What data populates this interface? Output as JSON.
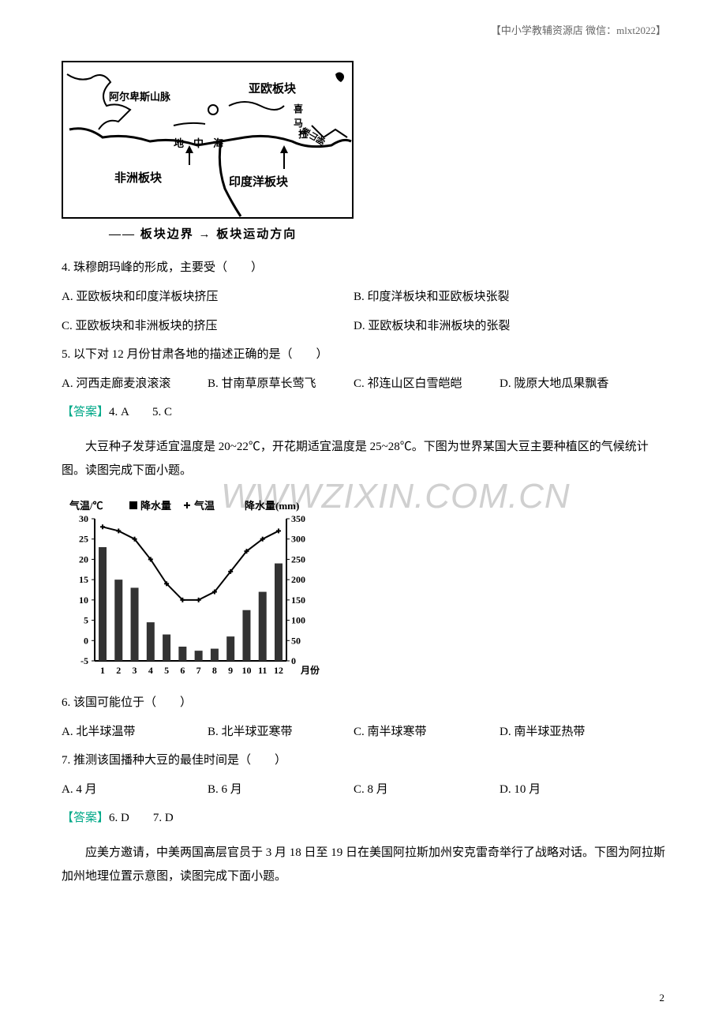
{
  "header": "【中小学教辅资源店  微信：mlxt2022】",
  "map": {
    "labels": {
      "eurasian": "亚欧板块",
      "african": "非洲板块",
      "indian": "印度洋板块",
      "alps": "阿尔卑斯山脉",
      "himalayas": "喜马拉雅山脉",
      "mediterranean": "地中海"
    },
    "legend": "—— 板块边界    → 板块运动方向"
  },
  "q4": {
    "text": "4. 珠穆朗玛峰的形成，主要受（　　）",
    "optA": "A.  亚欧板块和印度洋板块挤压",
    "optB": "B.  印度洋板块和亚欧板块张裂",
    "optC": "C.  亚欧板块和非洲板块的挤压",
    "optD": "D.  亚欧板块和非洲板块的张裂"
  },
  "q5": {
    "text": "5. 以下对 12 月份甘肃各地的描述正确的是（　　）",
    "optA": "A. 河西走廊麦浪滚滚",
    "optB": "B. 甘南草原草长莺飞",
    "optC": "C. 祁连山区白雪皑皑",
    "optD": "D. 陇原大地瓜果飘香"
  },
  "answer45": {
    "label": "【答案】",
    "text": "4. A　　5. C"
  },
  "passage1": "大豆种子发芽适宜温度是 20~22℃，开花期适宜温度是 25~28℃。下图为世界某国大豆主要种植区的气候统计图。读图完成下面小题。",
  "chart": {
    "leftAxisLabel": "气温/℃",
    "rightAxisLabel": "降水量(mm)",
    "legendPrecip": "■降水量",
    "legendTemp": "➕气温",
    "xLabel": "月份",
    "leftTicks": [
      -5,
      0,
      5,
      10,
      15,
      20,
      25,
      30
    ],
    "rightTicks": [
      0,
      50,
      100,
      150,
      200,
      250,
      300,
      350
    ],
    "months": [
      "1",
      "2",
      "3",
      "4",
      "5",
      "6",
      "7",
      "8",
      "9",
      "10",
      "11",
      "12"
    ],
    "temperature": [
      28,
      27,
      25,
      20,
      14,
      10,
      10,
      12,
      17,
      22,
      25,
      27
    ],
    "precipitation": [
      280,
      200,
      180,
      95,
      65,
      35,
      25,
      30,
      60,
      125,
      170,
      240
    ],
    "barColor": "#333333",
    "lineColor": "#000000",
    "markerColor": "#000000",
    "bgColor": "#ffffff",
    "gridColor": "#000000"
  },
  "q6": {
    "text": "6. 该国可能位于（　　）",
    "optA": "A.  北半球温带",
    "optB": "B.  北半球亚寒带",
    "optC": "C.  南半球寒带",
    "optD": "D.  南半球亚热带"
  },
  "q7": {
    "text": "7. 推测该国播种大豆的最佳时间是（　　）",
    "optA": "A. 4 月",
    "optB": "B. 6 月",
    "optC": "C. 8 月",
    "optD": "D. 10 月"
  },
  "answer67": {
    "label": "【答案】",
    "text": "6. D　　7. D"
  },
  "passage2": "应美方邀请，中美两国高层官员于 3 月 18 日至 19 日在美国阿拉斯加州安克雷奇举行了战略对话。下图为阿拉斯加州地理位置示意图，读图完成下面小题。",
  "watermark": "WWWZIXIN.COM.CN",
  "pageNumber": "2"
}
